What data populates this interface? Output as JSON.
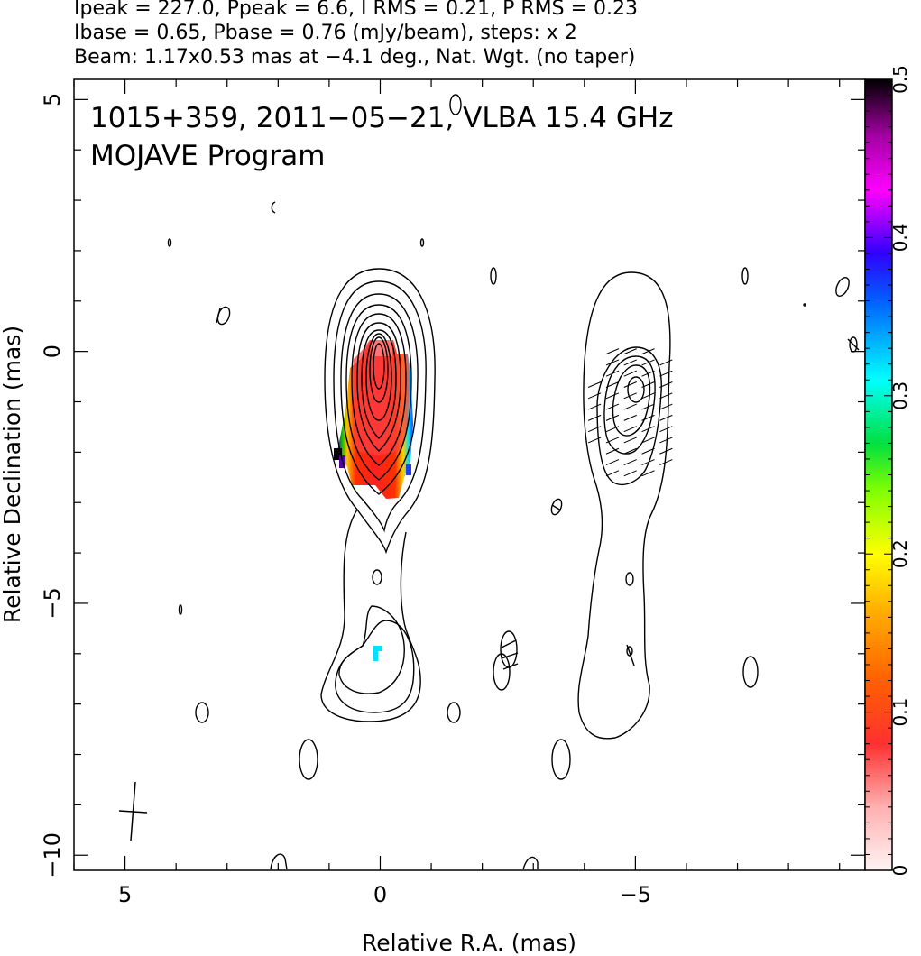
{
  "header": {
    "line1": "Ipeak = 227.0, Ppeak = 6.6, I RMS = 0.21, P RMS = 0.23",
    "line2": "Ibase = 0.65, Pbase = 0.76 (mJy/beam), steps: x 2",
    "line3": "Beam: 1.17x0.53 mas at −4.1 deg., Nat. Wgt. (no taper)"
  },
  "chart_data": {
    "type": "heatmap",
    "annotations": [
      "1015+359, 2011−05−21, VLBA 15.4 GHz",
      "MOJAVE Program"
    ],
    "xlabel": "Relative R.A. (mas)",
    "ylabel": "Relative Declination (mas)",
    "xlim": [
      6,
      -9.5
    ],
    "ylim": [
      -10.3,
      5.4
    ],
    "x_ticks": [
      5,
      0,
      -5
    ],
    "x_tick_labels": [
      "5",
      "0",
      "−5"
    ],
    "y_ticks": [
      5,
      0,
      -5,
      -10
    ],
    "y_tick_labels": [
      "5",
      "0",
      "−5",
      "−10"
    ],
    "colorbar": {
      "range": [
        0,
        0.5
      ],
      "ticks": [
        0,
        0.1,
        0.2,
        0.3,
        0.4,
        0.5
      ],
      "tick_labels": [
        "0",
        "0.1",
        "0.2",
        "0.3",
        "0.4",
        "0.5"
      ],
      "colors": [
        "#fff0f0",
        "#ff8080",
        "#ff0000",
        "#ff8000",
        "#ffff00",
        "#00ff00",
        "#00ffff",
        "#0000ff",
        "#ff00ff",
        "#000000"
      ]
    },
    "left_panel": {
      "core_center": [
        0,
        -0.6
      ],
      "contour_levels_count": 10,
      "pol_region": {
        "x_range": [
          -0.7,
          0.7
        ],
        "y_range": [
          -2.9,
          0.2
        ]
      },
      "knot_center": [
        0.1,
        -6.5
      ]
    },
    "right_panel": {
      "x_offset": -5,
      "evpa_region": {
        "x_range": [
          -4.2,
          -5.8
        ],
        "y_range": [
          -2.6,
          0.0
        ]
      }
    },
    "beam": {
      "major_mas": 1.17,
      "minor_mas": 0.53,
      "pa_deg": -4.1,
      "position": [
        4.9,
        -9.2
      ]
    }
  }
}
